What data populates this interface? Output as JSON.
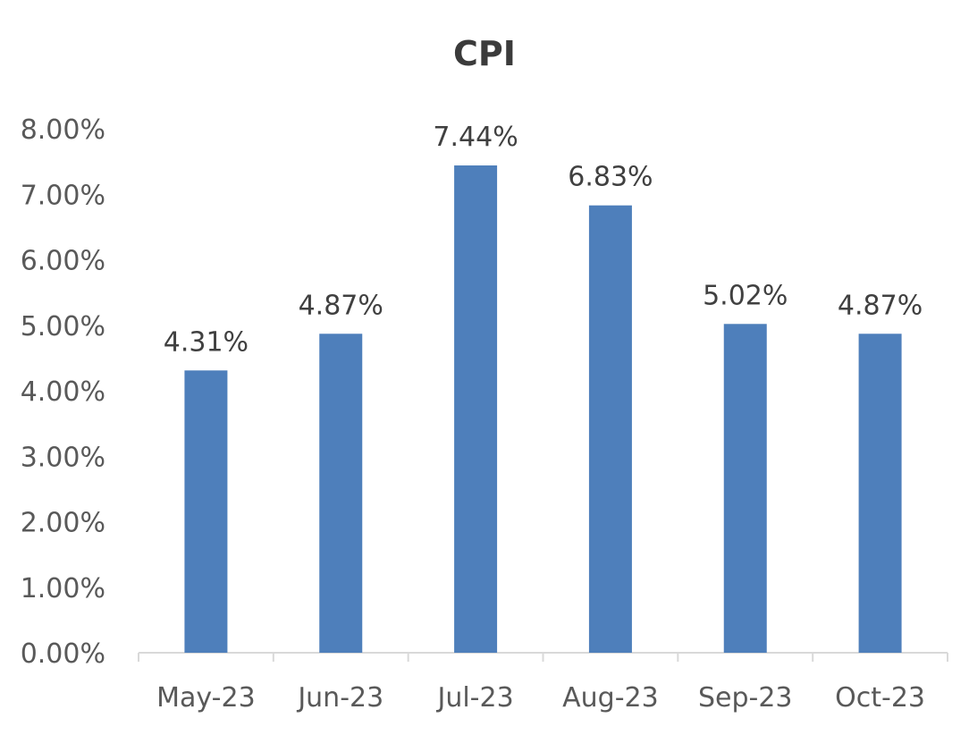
{
  "chart_data": {
    "type": "bar",
    "title": "CPI",
    "xlabel": "",
    "ylabel": "",
    "categories": [
      "May-23",
      "Jun-23",
      "Jul-23",
      "Aug-23",
      "Sep-23",
      "Oct-23"
    ],
    "series": [
      {
        "values": [
          4.31,
          4.87,
          7.44,
          6.83,
          5.02,
          4.87
        ],
        "data_labels": [
          "4.31%",
          "4.87%",
          "7.44%",
          "6.83%",
          "5.02%",
          "4.87%"
        ],
        "color": "#4e7fbb"
      }
    ],
    "ylim": [
      0,
      8
    ],
    "yticks": [
      0,
      1,
      2,
      3,
      4,
      5,
      6,
      7,
      8
    ],
    "ytick_labels": [
      "0.00%",
      "1.00%",
      "2.00%",
      "3.00%",
      "4.00%",
      "5.00%",
      "6.00%",
      "7.00%",
      "8.00%"
    ],
    "grid": false,
    "legend": "none"
  }
}
